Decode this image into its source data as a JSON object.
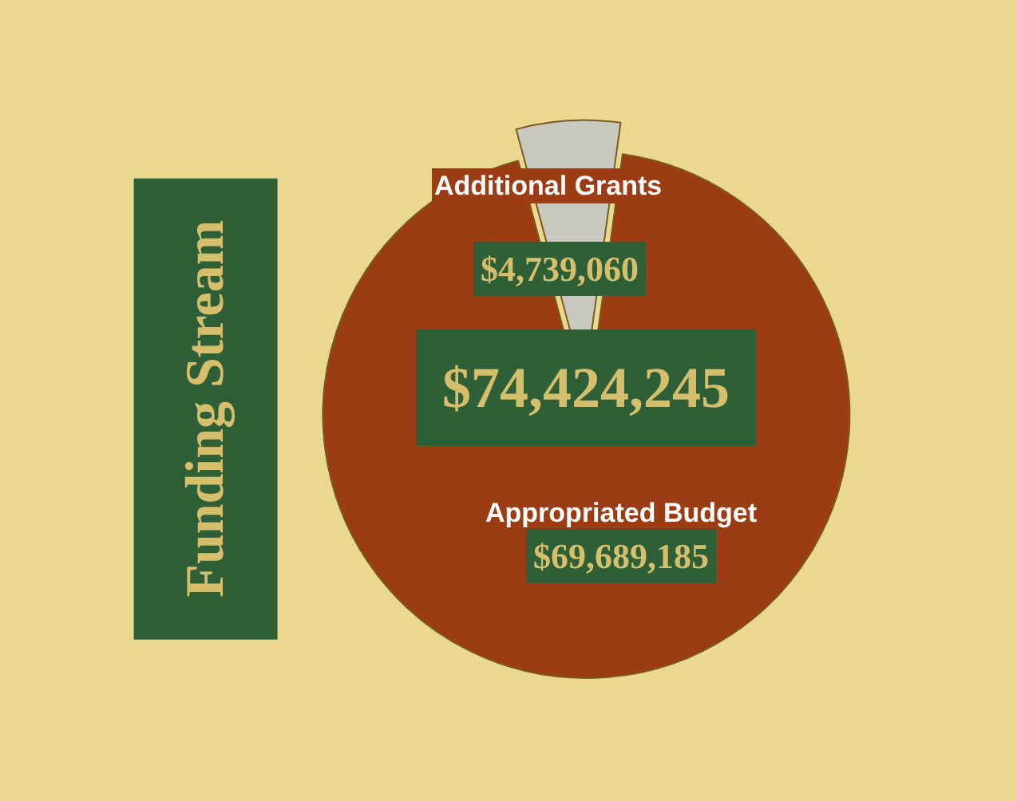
{
  "chart_data": {
    "type": "pie",
    "title": "Funding Stream",
    "categories": [
      "Additional Grants",
      "Appropriated Budget"
    ],
    "values": [
      4739060,
      69689185
    ],
    "colors": [
      "#c9c8be",
      "#9b3c14"
    ],
    "value_labels": [
      "$4,739,060",
      "$69,689,185"
    ],
    "annotations": [
      "$74,424,245"
    ],
    "legend": false
  }
}
